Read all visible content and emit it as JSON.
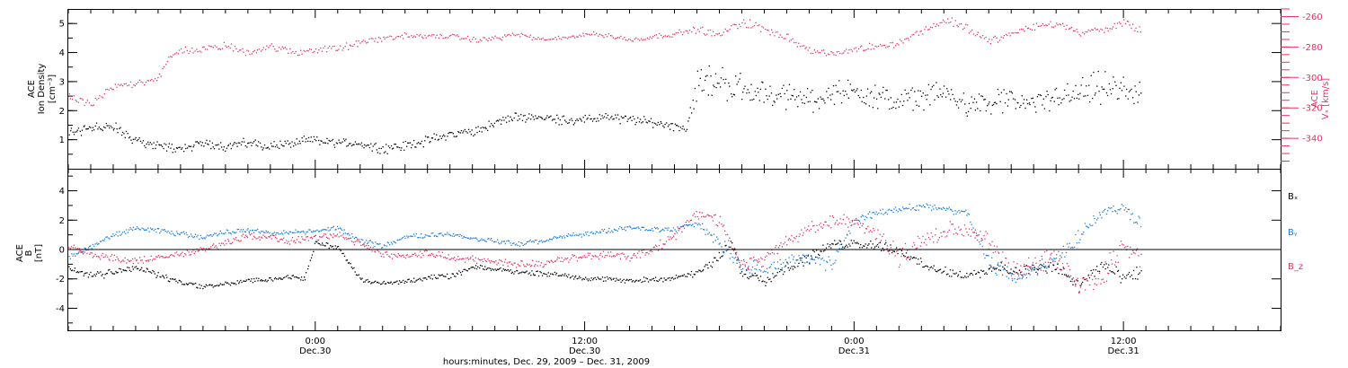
{
  "colors": {
    "black": "#000000",
    "pink": "#e8325f",
    "blue": "#1a7ee0"
  },
  "time_axis": {
    "label": "hours:minutes, Dec. 29, 2009 – Dec. 31, 2009",
    "ticks": [
      {
        "hour": 16,
        "time": "0:00",
        "date": "Dec.30"
      },
      {
        "hour": 28,
        "time": "12:00",
        "date": "Dec.30"
      },
      {
        "hour": 40,
        "time": "0:00",
        "date": "Dec.31"
      },
      {
        "hour": 52,
        "time": "12:00",
        "date": "Dec.31"
      }
    ],
    "range_hours": [
      5,
      59
    ]
  },
  "chart_data": [
    {
      "type": "scatter",
      "title": "",
      "ylabel_left": [
        "ACE",
        "Ion Density",
        "[cm⁻³]"
      ],
      "ylabel_right": [
        "ACE",
        "Vₓ [km/s]"
      ],
      "ylim": [
        0,
        5.5
      ],
      "yticks": [
        "1",
        "2",
        "3",
        "4",
        "5"
      ],
      "ylim_right": [
        -360,
        -255
      ],
      "yticks_right": [
        "-260",
        "-280",
        "-300",
        "-320",
        "-340"
      ],
      "series": [
        {
          "color": "black",
          "x": [
            5,
            6,
            7,
            8,
            9,
            10,
            11,
            12,
            13,
            14,
            15,
            16,
            17,
            18,
            19,
            20,
            21,
            22,
            23,
            24,
            25,
            26,
            27,
            28,
            29,
            30,
            31,
            32,
            32.5,
            33,
            34,
            35,
            36,
            37,
            38,
            39,
            40,
            41,
            42,
            43,
            44,
            45,
            46,
            47,
            48,
            49,
            50,
            51,
            52,
            52.8
          ],
          "y": [
            1.2,
            1.5,
            1.4,
            1.0,
            0.8,
            0.7,
            0.9,
            0.8,
            0.9,
            0.8,
            0.9,
            1.0,
            0.9,
            0.9,
            0.7,
            0.8,
            1.0,
            1.2,
            1.3,
            1.6,
            1.8,
            1.8,
            1.7,
            1.7,
            1.8,
            1.7,
            1.6,
            1.5,
            1.4,
            3.0,
            3.0,
            2.8,
            2.6,
            2.5,
            2.4,
            2.6,
            2.7,
            2.5,
            2.3,
            2.5,
            2.6,
            2.3,
            2.2,
            2.4,
            2.2,
            2.5,
            2.6,
            2.8,
            2.7,
            2.6
          ],
          "spread": [
            0.3,
            0.3,
            0.3,
            0.2,
            0.2,
            0.2,
            0.2,
            0.2,
            0.2,
            0.2,
            0.2,
            0.2,
            0.2,
            0.2,
            0.2,
            0.2,
            0.2,
            0.2,
            0.2,
            0.2,
            0.2,
            0.2,
            0.2,
            0.2,
            0.2,
            0.2,
            0.2,
            0.2,
            0.2,
            0.7,
            0.7,
            0.6,
            0.5,
            0.5,
            0.5,
            0.5,
            0.5,
            0.5,
            0.5,
            0.5,
            0.5,
            0.5,
            0.5,
            0.5,
            0.5,
            0.5,
            0.6,
            0.7,
            0.6,
            0.5
          ],
          "count": 900
        },
        {
          "color": "pink",
          "axis": "right",
          "x": [
            5,
            6,
            6.5,
            7,
            8,
            9,
            9.5,
            10,
            11,
            12,
            13,
            14,
            15,
            16,
            17,
            18,
            19,
            20,
            21,
            22,
            23,
            24,
            25,
            26,
            27,
            28,
            29,
            30,
            31,
            32,
            33,
            34,
            35,
            36,
            37,
            38,
            39,
            40,
            41,
            42,
            43,
            44,
            45,
            46,
            47,
            48,
            49,
            50,
            51,
            52,
            52.8
          ],
          "y": [
            -313,
            -317,
            -312,
            -306,
            -303,
            -300,
            -287,
            -282,
            -281,
            -279,
            -283,
            -279,
            -284,
            -281,
            -281,
            -277,
            -274,
            -272,
            -273,
            -272,
            -275,
            -274,
            -271,
            -275,
            -274,
            -271,
            -272,
            -275,
            -273,
            -271,
            -268,
            -272,
            -263,
            -268,
            -273,
            -282,
            -285,
            -281,
            -279,
            -277,
            -269,
            -262,
            -267,
            -276,
            -271,
            -266,
            -264,
            -270,
            -269,
            -264,
            -269
          ],
          "spread": [
            3,
            3,
            3,
            3,
            3,
            3,
            3,
            3,
            3,
            3,
            3,
            3,
            3,
            3,
            3,
            3,
            3,
            2,
            2,
            2,
            2,
            2,
            2,
            2,
            2,
            2,
            2,
            2,
            2,
            2,
            3,
            3,
            4,
            3,
            3,
            3,
            3,
            3,
            3,
            3,
            3,
            4,
            3,
            3,
            3,
            3,
            3,
            3,
            3,
            3,
            3
          ],
          "count": 700
        }
      ]
    },
    {
      "type": "scatter",
      "title": "",
      "ylabel_left": [
        "ACE",
        "B",
        "[nT]"
      ],
      "ylim": [
        -5.5,
        5.5
      ],
      "yticks": [
        "4",
        "2",
        "0",
        "-2",
        "-4"
      ],
      "legend": [
        "Bₓ",
        "Bᵧ",
        "B_z"
      ],
      "zero_line": true,
      "series": [
        {
          "name": "Bₓ",
          "color": "black",
          "x": [
            5,
            6,
            7,
            8,
            9,
            10,
            11,
            12,
            13,
            14,
            15,
            15.5,
            16,
            16.5,
            17,
            18,
            19,
            20,
            21,
            22,
            23,
            24,
            25,
            26,
            27,
            28,
            29,
            30,
            31,
            32,
            33,
            34,
            34.5,
            35,
            36,
            37,
            38,
            39,
            40,
            41,
            42,
            43,
            44,
            45,
            46,
            46.5,
            47,
            48,
            49,
            50,
            51,
            52,
            52.8
          ],
          "y": [
            -1.2,
            -1.8,
            -1.5,
            -1.2,
            -1.7,
            -2.2,
            -2.5,
            -2.3,
            -2.1,
            -2.0,
            -1.8,
            -2.0,
            0.5,
            0.3,
            0.2,
            -2.0,
            -2.3,
            -2.1,
            -1.9,
            -1.8,
            -1.2,
            -1.3,
            -1.5,
            -1.6,
            -1.7,
            -1.9,
            -2.0,
            -2.1,
            -2.0,
            -1.9,
            -1.6,
            -0.5,
            0.5,
            -1.5,
            -2.0,
            -1.2,
            -0.5,
            0.3,
            0.5,
            0.3,
            0.0,
            -1.0,
            -1.5,
            -1.8,
            -1.4,
            -1.0,
            -1.5,
            -1.3,
            -1.2,
            -2.5,
            -1.0,
            -2.0,
            -1.5
          ],
          "spread": [
            0.3,
            0.3,
            0.3,
            0.3,
            0.3,
            0.2,
            0.2,
            0.2,
            0.2,
            0.2,
            0.2,
            0.2,
            0.2,
            0.2,
            0.2,
            0.2,
            0.2,
            0.2,
            0.2,
            0.2,
            0.2,
            0.2,
            0.2,
            0.2,
            0.2,
            0.2,
            0.2,
            0.2,
            0.2,
            0.2,
            0.3,
            0.5,
            0.4,
            0.5,
            0.5,
            0.5,
            0.5,
            0.4,
            0.4,
            0.4,
            0.4,
            0.4,
            0.4,
            0.4,
            0.4,
            0.4,
            0.5,
            0.5,
            0.5,
            0.5,
            0.6,
            0.6,
            0.6
          ],
          "count": 900
        },
        {
          "name": "Bᵧ",
          "color": "blue",
          "x": [
            5,
            6,
            7,
            8,
            9,
            10,
            11,
            12,
            13,
            14,
            15,
            16,
            17,
            18,
            19,
            20,
            21,
            22,
            23,
            24,
            25,
            26,
            27,
            28,
            29,
            30,
            31,
            32,
            33,
            34,
            35,
            36,
            37,
            38,
            39,
            40,
            41,
            42,
            43,
            44,
            45,
            46,
            47,
            48,
            49,
            50,
            51,
            52,
            52.8
          ],
          "y": [
            -0.5,
            0.2,
            1.0,
            1.5,
            1.3,
            1.1,
            0.9,
            1.2,
            1.4,
            1.1,
            1.2,
            1.3,
            1.5,
            0.6,
            0.3,
            0.9,
            1.0,
            1.1,
            0.8,
            0.6,
            0.4,
            0.6,
            0.9,
            1.1,
            1.3,
            1.5,
            1.4,
            1.4,
            1.8,
            0.5,
            -1.0,
            -1.5,
            -0.8,
            -0.5,
            -1.0,
            2.0,
            2.5,
            2.8,
            3.0,
            2.8,
            2.5,
            -1.0,
            -1.8,
            -1.4,
            -0.5,
            1.0,
            2.5,
            2.8,
            1.8
          ],
          "spread": [
            0.2,
            0.2,
            0.2,
            0.2,
            0.2,
            0.2,
            0.2,
            0.2,
            0.2,
            0.2,
            0.2,
            0.2,
            0.2,
            0.2,
            0.2,
            0.2,
            0.2,
            0.2,
            0.2,
            0.2,
            0.2,
            0.2,
            0.2,
            0.2,
            0.2,
            0.2,
            0.2,
            0.2,
            0.3,
            0.5,
            0.6,
            0.6,
            0.6,
            0.6,
            0.6,
            0.4,
            0.3,
            0.3,
            0.3,
            0.3,
            0.3,
            0.8,
            0.6,
            0.6,
            0.6,
            0.8,
            0.5,
            0.5,
            0.4
          ],
          "count": 900
        },
        {
          "name": "B_z",
          "color": "pink",
          "x": [
            5,
            6,
            7,
            8,
            9,
            10,
            11,
            12,
            13,
            14,
            15,
            16,
            17,
            18,
            19,
            20,
            21,
            22,
            23,
            24,
            25,
            26,
            27,
            28,
            29,
            30,
            31,
            32,
            33,
            34,
            35,
            36,
            37,
            38,
            39,
            40,
            41,
            42,
            43,
            44,
            45,
            46,
            47,
            48,
            49,
            50,
            51,
            52,
            52.8
          ],
          "y": [
            0.3,
            -0.3,
            -0.6,
            -0.8,
            -0.5,
            -0.3,
            0.0,
            0.5,
            1.0,
            0.8,
            0.6,
            0.9,
            1.0,
            0.4,
            -0.3,
            -0.4,
            -0.2,
            -0.5,
            -0.6,
            -0.8,
            -0.9,
            -1.0,
            -0.6,
            -0.4,
            -0.3,
            -0.5,
            0.0,
            1.0,
            2.5,
            2.0,
            -1.0,
            -0.5,
            0.5,
            1.5,
            2.0,
            2.0,
            1.0,
            -0.5,
            0.5,
            1.2,
            1.5,
            0.5,
            -1.5,
            -1.0,
            -0.5,
            -2.5,
            -2.0,
            0.5,
            -1.0
          ],
          "spread": [
            0.3,
            0.3,
            0.3,
            0.3,
            0.3,
            0.3,
            0.3,
            0.3,
            0.3,
            0.3,
            0.3,
            0.3,
            0.3,
            0.3,
            0.3,
            0.3,
            0.3,
            0.3,
            0.3,
            0.3,
            0.3,
            0.3,
            0.3,
            0.3,
            0.3,
            0.3,
            0.4,
            0.4,
            0.4,
            0.5,
            0.6,
            0.6,
            0.6,
            0.5,
            0.5,
            0.5,
            0.5,
            0.8,
            0.8,
            0.8,
            0.7,
            0.8,
            0.8,
            0.8,
            0.8,
            1.0,
            1.0,
            1.0,
            1.0
          ],
          "count": 900
        }
      ]
    }
  ]
}
